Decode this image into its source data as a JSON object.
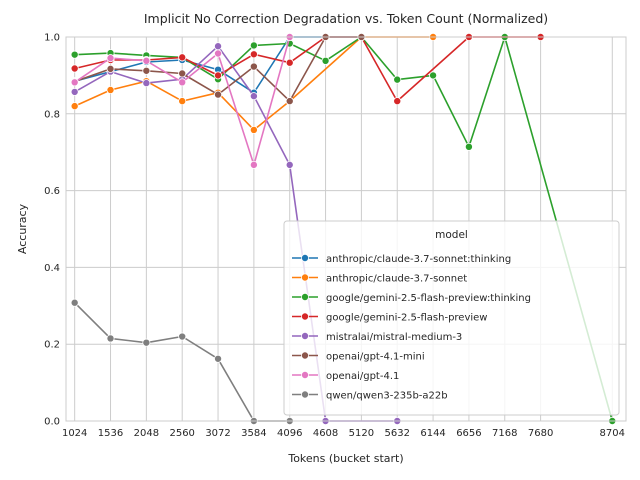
{
  "chart_data": {
    "type": "line",
    "title": "Implicit No Correction Degradation vs. Token Count (Normalized)",
    "xlabel": "Tokens (bucket start)",
    "ylabel": "Accuracy",
    "ylim": [
      0,
      1.0
    ],
    "yticks": [
      0.0,
      0.2,
      0.4,
      0.6,
      0.8,
      1.0
    ],
    "ytick_labels": [
      "0.0",
      "0.2",
      "0.4",
      "0.6",
      "0.8",
      "1.0"
    ],
    "xticks": [
      1024,
      1536,
      2048,
      2560,
      3072,
      3584,
      4096,
      4608,
      5120,
      5632,
      6144,
      6656,
      7168,
      7680,
      8704
    ],
    "xtick_labels": [
      "1024",
      "1536",
      "2048",
      "2560",
      "3072",
      "3584",
      "4096",
      "4608",
      "5120",
      "5632",
      "6144",
      "6656",
      "7168",
      "7680",
      "8704"
    ],
    "xlim": [
      900,
      8900
    ],
    "grid": true,
    "legend": {
      "title": "model",
      "placement": "lower-right"
    },
    "series": [
      {
        "name": "anthropic/claude-3.7-sonnet:thinking",
        "color": "#1f77b4",
        "x": [
          1024,
          1536,
          2048,
          2560,
          3072,
          3584,
          4096,
          4608,
          5120
        ],
        "y": [
          0.885,
          0.91,
          0.935,
          0.94,
          0.915,
          0.855,
          1.0,
          1.0,
          1.0
        ]
      },
      {
        "name": "anthropic/claude-3.7-sonnet",
        "color": "#ff7f0e",
        "x": [
          1024,
          1536,
          2048,
          2560,
          3072,
          3584,
          4096,
          5120,
          6144
        ],
        "y": [
          0.82,
          0.862,
          0.885,
          0.833,
          0.855,
          0.758,
          0.833,
          1.0,
          1.0
        ]
      },
      {
        "name": "google/gemini-2.5-flash-preview:thinking",
        "color": "#2ca02c",
        "x": [
          1024,
          1536,
          2048,
          2560,
          3072,
          3584,
          4096,
          4608,
          5120,
          5632,
          6144,
          6656,
          7168,
          8704
        ],
        "y": [
          0.954,
          0.958,
          0.952,
          0.947,
          0.89,
          0.978,
          0.983,
          0.938,
          1.0,
          0.889,
          0.9,
          0.714,
          1.0,
          0.0
        ]
      },
      {
        "name": "google/gemini-2.5-flash-preview",
        "color": "#d62728",
        "x": [
          1024,
          1536,
          2048,
          2560,
          3072,
          3584,
          4096,
          4608,
          5120,
          5632,
          6656,
          7680
        ],
        "y": [
          0.918,
          0.94,
          0.94,
          0.947,
          0.9,
          0.955,
          0.933,
          1.0,
          1.0,
          0.833,
          1.0,
          1.0
        ]
      },
      {
        "name": "mistralai/mistral-medium-3",
        "color": "#9467bd",
        "x": [
          1024,
          1536,
          2048,
          2560,
          3072,
          3584,
          4096,
          4608,
          5632
        ],
        "y": [
          0.857,
          0.91,
          0.88,
          0.89,
          0.976,
          0.846,
          0.667,
          0.0,
          0.0
        ]
      },
      {
        "name": "openai/gpt-4.1-mini",
        "color": "#8c564b",
        "x": [
          1024,
          1536,
          2048,
          2560,
          3072,
          3584,
          4096,
          4608,
          5120
        ],
        "y": [
          0.884,
          0.917,
          0.912,
          0.905,
          0.85,
          0.923,
          0.833,
          1.0,
          1.0
        ]
      },
      {
        "name": "openai/gpt-4.1",
        "color": "#e377c2",
        "x": [
          1024,
          1536,
          2048,
          2560,
          3072,
          3584,
          4096
        ],
        "y": [
          0.882,
          0.945,
          0.938,
          0.882,
          0.957,
          0.667,
          1.0
        ]
      },
      {
        "name": "qwen/qwen3-235b-a22b",
        "color": "#7f7f7f",
        "x": [
          1024,
          1536,
          2048,
          2560,
          3072,
          3584,
          4096
        ],
        "y": [
          0.308,
          0.215,
          0.204,
          0.22,
          0.162,
          0.0,
          0.0
        ]
      }
    ]
  }
}
